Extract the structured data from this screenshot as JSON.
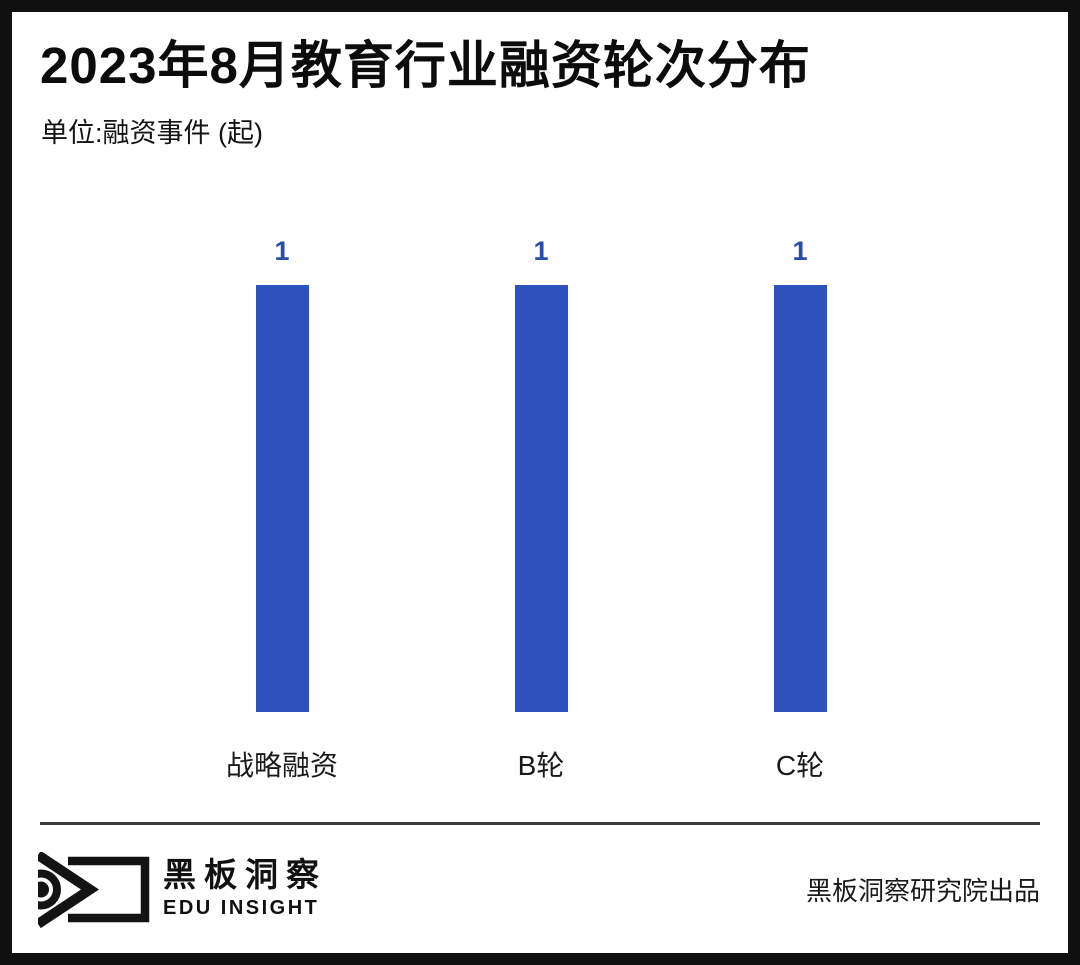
{
  "page": {
    "title": "2023年8月教育行业融资轮次分布",
    "unit": "单位:融资事件 (起)"
  },
  "chart_data": {
    "type": "bar",
    "title": "2023年8月教育行业融资轮次分布",
    "unit_label": "单位:融资事件 (起)",
    "categories": [
      "战略融资",
      "B轮",
      "C轮"
    ],
    "values": [
      1,
      1,
      1
    ],
    "xlabel": "",
    "ylabel": "",
    "ylim": [
      0,
      1
    ],
    "grid": false,
    "legend": false,
    "bar_color": "#2e52bd",
    "value_label_color": "#2a4cad"
  },
  "footer": {
    "logo": {
      "icon": "blackboard-eye-logo",
      "name_cn": "黑板洞察",
      "name_en": "EDU INSIGHT"
    },
    "credit": "黑板洞察研究院出品"
  }
}
